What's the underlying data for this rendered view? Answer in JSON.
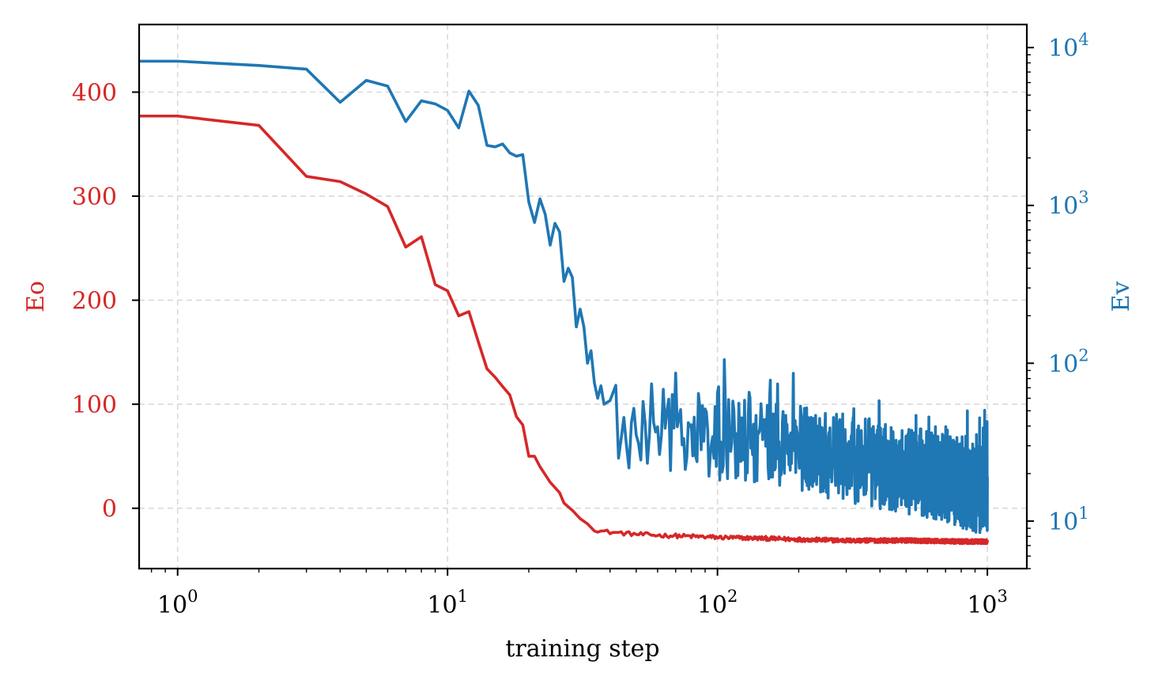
{
  "chart_data": {
    "type": "line",
    "xlabel": "training step",
    "xscale": "log",
    "xlim": [
      0.72,
      1400
    ],
    "x_ticks": [
      {
        "value": 1,
        "base": "10",
        "exp": "0"
      },
      {
        "value": 10,
        "base": "10",
        "exp": "1"
      },
      {
        "value": 100,
        "base": "10",
        "exp": "2"
      },
      {
        "value": 1000,
        "base": "10",
        "exp": "3"
      }
    ],
    "y_left": {
      "label": "Eo",
      "color": "#d62728",
      "scale": "linear",
      "lim": [
        -58,
        465
      ],
      "ticks": [
        {
          "value": 0,
          "label": "0"
        },
        {
          "value": 100,
          "label": "100"
        },
        {
          "value": 200,
          "label": "200"
        },
        {
          "value": 300,
          "label": "300"
        },
        {
          "value": 400,
          "label": "400"
        }
      ]
    },
    "y_right": {
      "label": "Ev",
      "color": "#1f77b4",
      "scale": "log",
      "lim": [
        5,
        14000
      ],
      "ticks": [
        {
          "value": 10,
          "base": "10",
          "exp": "1"
        },
        {
          "value": 100,
          "base": "10",
          "exp": "2"
        },
        {
          "value": 1000,
          "base": "10",
          "exp": "3"
        },
        {
          "value": 10000,
          "base": "10",
          "exp": "4"
        }
      ]
    },
    "grid": true,
    "series": [
      {
        "name": "Eo",
        "axis": "left",
        "color": "#d62728",
        "points": [
          [
            0.7,
            377
          ],
          [
            1,
            377
          ],
          [
            2,
            368
          ],
          [
            3,
            319
          ],
          [
            4,
            314
          ],
          [
            5,
            302
          ],
          [
            6,
            290
          ],
          [
            7,
            251
          ],
          [
            8,
            261
          ],
          [
            9,
            215
          ],
          [
            10,
            209
          ],
          [
            11,
            185
          ],
          [
            12,
            189
          ],
          [
            13,
            160
          ],
          [
            14,
            134
          ],
          [
            15,
            126
          ],
          [
            16,
            117
          ],
          [
            17,
            109
          ],
          [
            18,
            88
          ],
          [
            19,
            80
          ],
          [
            20,
            50
          ],
          [
            21,
            50
          ],
          [
            22,
            40
          ],
          [
            24,
            25
          ],
          [
            26,
            15
          ],
          [
            27,
            5
          ],
          [
            29,
            -2
          ],
          [
            31,
            -10
          ],
          [
            33,
            -15
          ],
          [
            35,
            -20
          ],
          [
            37,
            -22
          ],
          [
            40,
            -23
          ],
          [
            45,
            -24
          ],
          [
            50,
            -25
          ],
          [
            60,
            -26
          ],
          [
            80,
            -27
          ],
          [
            100,
            -28
          ],
          [
            150,
            -29
          ],
          [
            200,
            -30
          ],
          [
            300,
            -31
          ],
          [
            500,
            -31
          ],
          [
            800,
            -32
          ],
          [
            1000,
            -32
          ]
        ],
        "noise_from": 35,
        "noise_amp": 2
      },
      {
        "name": "Ev",
        "axis": "right",
        "color": "#1f77b4",
        "points": [
          [
            0.7,
            8200
          ],
          [
            1,
            8200
          ],
          [
            2,
            7700
          ],
          [
            3,
            7300
          ],
          [
            4,
            4500
          ],
          [
            5,
            6200
          ],
          [
            6,
            5700
          ],
          [
            7,
            3400
          ],
          [
            8,
            4600
          ],
          [
            9,
            4400
          ],
          [
            10,
            4000
          ],
          [
            11,
            3100
          ],
          [
            12,
            5300
          ],
          [
            13,
            4300
          ],
          [
            14,
            2400
          ],
          [
            15,
            2350
          ],
          [
            16,
            2450
          ],
          [
            17,
            2150
          ],
          [
            18,
            2050
          ],
          [
            19,
            2100
          ],
          [
            20,
            1050
          ],
          [
            21,
            780
          ],
          [
            22,
            1100
          ],
          [
            23,
            880
          ],
          [
            24,
            560
          ],
          [
            25,
            770
          ],
          [
            26,
            680
          ],
          [
            27,
            330
          ],
          [
            28,
            400
          ],
          [
            29,
            350
          ],
          [
            30,
            170
          ],
          [
            31,
            220
          ],
          [
            32,
            170
          ],
          [
            33,
            100
          ],
          [
            34,
            120
          ],
          [
            35,
            75
          ],
          [
            36,
            60
          ],
          [
            37,
            72
          ],
          [
            38,
            55
          ],
          [
            40,
            58
          ],
          [
            42,
            42
          ],
          [
            45,
            37
          ],
          [
            50,
            42
          ],
          [
            60,
            40
          ],
          [
            80,
            38
          ],
          [
            100,
            32
          ],
          [
            150,
            32
          ],
          [
            200,
            29
          ],
          [
            300,
            25
          ],
          [
            500,
            21
          ],
          [
            700,
            19
          ],
          [
            900,
            16
          ],
          [
            1000,
            16
          ]
        ],
        "noise_from": 42,
        "noise_amp_log10": 0.28
      }
    ]
  }
}
